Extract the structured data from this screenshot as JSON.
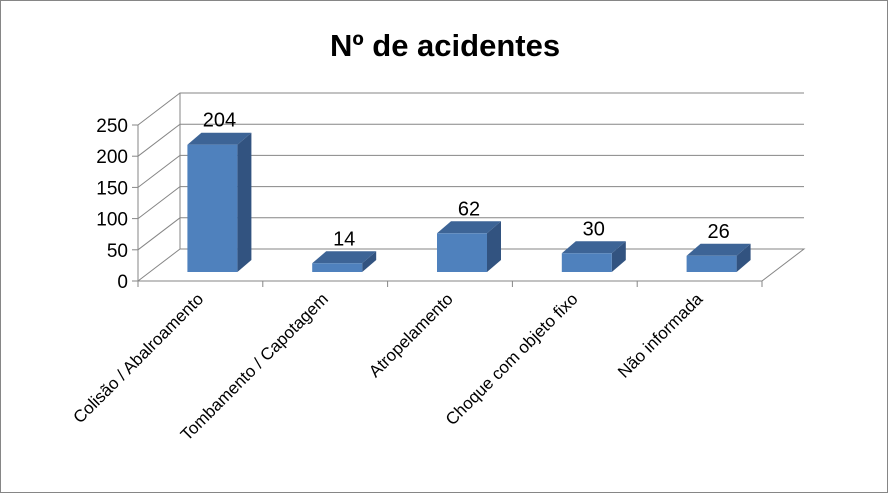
{
  "chart_data": {
    "type": "bar",
    "style": "3d-column",
    "title": "Nº de acidentes",
    "categories": [
      "Colisão / Abalroamento",
      "Tombamento / Capotagem",
      "Atropelamento",
      "Choque com objeto fixo",
      "Não informada"
    ],
    "values": [
      204,
      14,
      62,
      30,
      26
    ],
    "data_labels": [
      "204",
      "14",
      "62",
      "30",
      "26"
    ],
    "ylim": [
      0,
      250
    ],
    "yticks": [
      "0",
      "50",
      "100",
      "150",
      "200",
      "250"
    ],
    "grid": true,
    "legend": "none",
    "colors": {
      "front": "#4F81BD",
      "side": "#325380",
      "top": "#3D6496",
      "grid": "#868686"
    }
  }
}
